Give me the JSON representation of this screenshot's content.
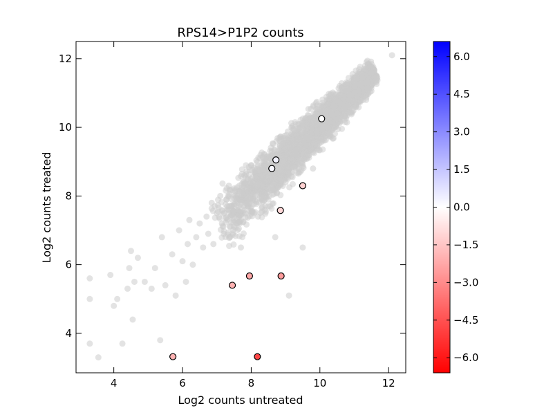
{
  "chart_data": {
    "type": "scatter",
    "title": "RPS14>P1P2 counts",
    "xlabel": "Log2 counts untreated",
    "ylabel": "Log2 counts treated",
    "xlim": [
      2.9,
      12.5
    ],
    "ylim": [
      2.85,
      12.5
    ],
    "xticks": [
      4,
      6,
      8,
      10,
      12
    ],
    "yticks": [
      4,
      6,
      8,
      10,
      12
    ],
    "grid": false,
    "background_series": {
      "name": "",
      "color": "#cccccc",
      "description_points": [
        [
          3.3,
          5.6
        ],
        [
          3.3,
          5.0
        ],
        [
          3.3,
          3.7
        ],
        [
          3.55,
          3.3
        ],
        [
          3.9,
          5.7
        ],
        [
          4.0,
          4.8
        ],
        [
          4.1,
          5.0
        ],
        [
          4.25,
          3.7
        ],
        [
          4.4,
          5.3
        ],
        [
          4.45,
          5.9
        ],
        [
          4.5,
          6.4
        ],
        [
          4.55,
          4.4
        ],
        [
          4.6,
          5.5
        ],
        [
          4.7,
          6.2
        ],
        [
          4.9,
          5.5
        ],
        [
          5.1,
          5.3
        ],
        [
          5.2,
          5.9
        ],
        [
          5.35,
          3.8
        ],
        [
          5.4,
          6.8
        ],
        [
          5.5,
          5.4
        ],
        [
          5.7,
          6.3
        ],
        [
          5.8,
          5.1
        ],
        [
          5.9,
          7.0
        ],
        [
          6.0,
          6.1
        ],
        [
          6.1,
          5.5
        ],
        [
          6.15,
          6.6
        ],
        [
          6.2,
          7.3
        ],
        [
          6.3,
          6.0
        ],
        [
          6.4,
          6.8
        ],
        [
          6.5,
          7.2
        ],
        [
          6.6,
          6.5
        ],
        [
          6.7,
          7.4
        ],
        [
          6.75,
          6.9
        ],
        [
          6.85,
          7.8
        ],
        [
          6.9,
          6.6
        ],
        [
          7.0,
          7.5
        ],
        [
          7.1,
          8.0
        ],
        [
          7.15,
          7.2
        ],
        [
          7.2,
          6.9
        ],
        [
          7.3,
          7.7
        ],
        [
          7.35,
          8.3
        ],
        [
          7.5,
          7.1
        ],
        [
          7.6,
          8.0
        ],
        [
          7.7,
          6.5
        ],
        [
          7.8,
          8.6
        ],
        [
          7.9,
          7.7
        ],
        [
          8.0,
          8.9
        ],
        [
          8.1,
          8.2
        ],
        [
          8.2,
          7.4
        ],
        [
          8.25,
          9.1
        ],
        [
          8.4,
          8.5
        ],
        [
          8.5,
          7.7
        ],
        [
          8.6,
          9.3
        ],
        [
          8.7,
          6.8
        ],
        [
          8.8,
          8.9
        ],
        [
          8.9,
          9.5
        ],
        [
          9.0,
          8.4
        ],
        [
          9.1,
          5.1
        ],
        [
          9.2,
          9.8
        ],
        [
          9.3,
          9.1
        ],
        [
          9.5,
          6.5
        ],
        [
          9.6,
          9.5
        ],
        [
          9.7,
          10.1
        ],
        [
          9.8,
          8.8
        ],
        [
          9.9,
          9.8
        ],
        [
          10.0,
          10.4
        ],
        [
          10.2,
          10.0
        ],
        [
          10.3,
          10.6
        ],
        [
          10.5,
          10.3
        ],
        [
          10.6,
          10.8
        ],
        [
          10.8,
          10.5
        ],
        [
          10.9,
          11.0
        ],
        [
          11.0,
          11.2
        ],
        [
          11.2,
          11.0
        ],
        [
          11.4,
          11.5
        ],
        [
          11.6,
          11.5
        ],
        [
          12.1,
          12.1
        ]
      ]
    },
    "highlighted_points": [
      {
        "x": 10.05,
        "y": 10.25,
        "value": 0.0
      },
      {
        "x": 8.72,
        "y": 9.05,
        "value": 0.3
      },
      {
        "x": 8.6,
        "y": 8.8,
        "value": 0.2
      },
      {
        "x": 9.5,
        "y": 8.3,
        "value": -1.2
      },
      {
        "x": 8.85,
        "y": 7.58,
        "value": -1.0
      },
      {
        "x": 7.95,
        "y": 5.67,
        "value": -2.3
      },
      {
        "x": 8.87,
        "y": 5.67,
        "value": -2.6
      },
      {
        "x": 7.45,
        "y": 5.4,
        "value": -2.0
      },
      {
        "x": 5.72,
        "y": 3.32,
        "value": -2.0
      },
      {
        "x": 8.18,
        "y": 3.32,
        "value": -4.8
      }
    ],
    "colorbar": {
      "min": -6.6,
      "max": 6.6,
      "ticks": [
        "6.0",
        "4.5",
        "3.0",
        "1.5",
        "0.0",
        "−1.5",
        "−3.0",
        "−4.5",
        "−6.0"
      ],
      "tick_values": [
        6.0,
        4.5,
        3.0,
        1.5,
        0.0,
        -1.5,
        -3.0,
        -4.5,
        -6.0
      ],
      "colormap": "bwr_reversed",
      "color_high": "#0000ff",
      "color_mid": "#ffffff",
      "color_low": "#ff0000"
    }
  }
}
